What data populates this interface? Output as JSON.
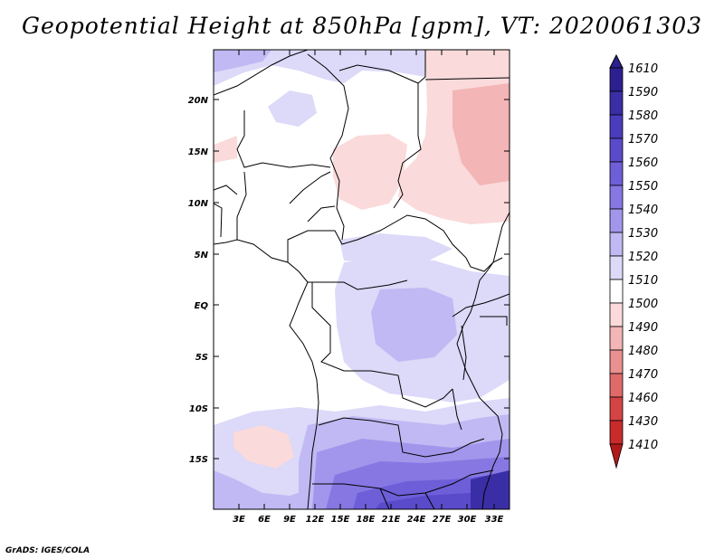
{
  "title": "Geopotential Height at 850hPa [gpm], VT: 2020061303",
  "credit": "GrADS: IGES/COLA",
  "map": {
    "lat_labels": [
      "20N",
      "15N",
      "10N",
      "5N",
      "EQ",
      "5S",
      "10S",
      "15S"
    ],
    "lon_labels": [
      "3E",
      "6E",
      "9E",
      "12E",
      "15E",
      "18E",
      "21E",
      "24E",
      "27E",
      "30E",
      "33E"
    ]
  },
  "colorbar": {
    "labels": [
      "1610",
      "1590",
      "1580",
      "1570",
      "1560",
      "1550",
      "1540",
      "1530",
      "1520",
      "1510",
      "1500",
      "1490",
      "1480",
      "1470",
      "1460",
      "1430",
      "1410"
    ],
    "colors": [
      "#2c1f8f",
      "#3a2ea6",
      "#4a3cbd",
      "#5a4bcb",
      "#6e5ed8",
      "#8677e2",
      "#a296ec",
      "#c0b9f3",
      "#dcd9f9",
      "#ffffff",
      "#fadada",
      "#f3b5b5",
      "#ea9090",
      "#e06a6a",
      "#d54444",
      "#c92a2a",
      "#b21a1a"
    ]
  }
}
